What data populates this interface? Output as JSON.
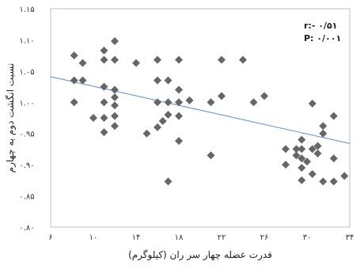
{
  "chart_data": {
    "type": "scatter",
    "xlabel": "قدرت عضله چهار سر ران (کیلوگرم)",
    "ylabel": "نسبت انگشت دوم به چهارم",
    "xlim": [
      6,
      34
    ],
    "ylim": [
      0.8,
      1.15
    ],
    "x_ticks": [
      "۶",
      "۱۰",
      "۱۴",
      "۱۸",
      "۲۲",
      "۲۶",
      "۳۰",
      "۳۴"
    ],
    "y_ticks": [
      "۰.۸۰",
      "۰.۸۵",
      "۰.۹۰",
      "۰.۹۵",
      "۱.۰۰",
      "۱.۰۵",
      "۱.۱۰",
      "۱.۱۵"
    ],
    "grid": false,
    "marker": "diamond",
    "marker_color": "#666666",
    "trendline_color": "#6f9fd8",
    "stats": {
      "r": "r:- ۰/۵۱",
      "p": "P: ۰/۰۰۱"
    },
    "trendline": {
      "x": [
        6,
        34
      ],
      "y": [
        1.041,
        0.934
      ]
    },
    "points": [
      [
        8.2,
        1.075
      ],
      [
        8.2,
        1.035
      ],
      [
        8.2,
        1.0
      ],
      [
        9.0,
        1.063
      ],
      [
        9.0,
        1.035
      ],
      [
        10.0,
        0.975
      ],
      [
        11.0,
        1.083
      ],
      [
        11.0,
        1.068
      ],
      [
        11.0,
        1.025
      ],
      [
        11.0,
        1.0
      ],
      [
        11.0,
        0.975
      ],
      [
        11.0,
        0.952
      ],
      [
        12.0,
        1.098
      ],
      [
        12.0,
        1.068
      ],
      [
        12.0,
        1.02
      ],
      [
        12.0,
        1.008
      ],
      [
        12.0,
        0.995
      ],
      [
        12.0,
        0.978
      ],
      [
        12.0,
        0.962
      ],
      [
        14.0,
        1.063
      ],
      [
        15.0,
        0.95
      ],
      [
        16.0,
        1.068
      ],
      [
        16.0,
        1.035
      ],
      [
        16.0,
        1.0
      ],
      [
        16.0,
        0.96
      ],
      [
        16.5,
        0.97
      ],
      [
        17.0,
        1.035
      ],
      [
        17.0,
        1.0
      ],
      [
        17.0,
        0.98
      ],
      [
        17.0,
        0.873
      ],
      [
        18.0,
        1.068
      ],
      [
        18.0,
        1.02
      ],
      [
        18.0,
        1.0
      ],
      [
        18.0,
        0.978
      ],
      [
        18.0,
        0.938
      ],
      [
        19.0,
        1.003
      ],
      [
        21.0,
        1.0
      ],
      [
        21.0,
        0.915
      ],
      [
        22.0,
        1.068
      ],
      [
        22.0,
        1.01
      ],
      [
        24.0,
        1.068
      ],
      [
        25.0,
        1.0
      ],
      [
        26.0,
        1.01
      ],
      [
        28.0,
        0.925
      ],
      [
        28.0,
        0.9
      ],
      [
        29.0,
        0.925
      ],
      [
        29.0,
        0.915
      ],
      [
        29.5,
        0.94
      ],
      [
        29.5,
        0.925
      ],
      [
        29.5,
        0.91
      ],
      [
        29.5,
        0.895
      ],
      [
        29.5,
        0.875
      ],
      [
        30.0,
        0.905
      ],
      [
        30.5,
        0.998
      ],
      [
        30.5,
        0.925
      ],
      [
        30.5,
        0.885
      ],
      [
        31.0,
        0.93
      ],
      [
        31.0,
        0.918
      ],
      [
        31.5,
        0.962
      ],
      [
        31.5,
        0.95
      ],
      [
        31.5,
        0.873
      ],
      [
        32.5,
        0.978
      ],
      [
        32.5,
        0.91
      ],
      [
        32.5,
        0.873
      ],
      [
        33.5,
        0.882
      ]
    ]
  }
}
